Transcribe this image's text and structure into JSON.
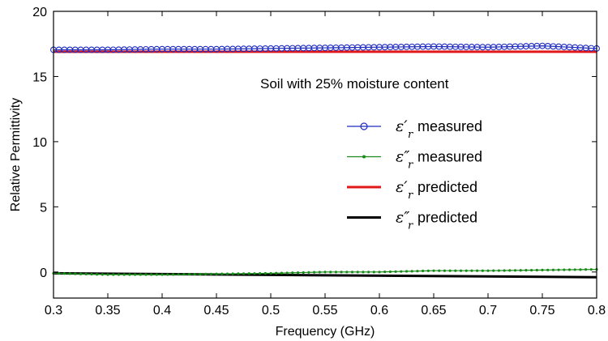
{
  "chart_data": {
    "type": "line",
    "title": "",
    "annotation": "Soil with 25% moisture content",
    "xlabel": "Frequency (GHz)",
    "ylabel": "Relative Permittivity",
    "xlim": [
      0.3,
      0.8
    ],
    "ylim": [
      -2,
      20
    ],
    "xticks": [
      0.3,
      0.35,
      0.4,
      0.45,
      0.5,
      0.55,
      0.6,
      0.65,
      0.7,
      0.75,
      0.8
    ],
    "xtick_labels": [
      "0.3",
      "0.35",
      "0.4",
      "0.45",
      "0.5",
      "0.55",
      "0.6",
      "0.65",
      "0.7",
      "0.75",
      "0.8"
    ],
    "yticks": [
      0,
      5,
      10,
      15,
      20
    ],
    "ytick_labels": [
      "0",
      "5",
      "10",
      "15",
      "20"
    ],
    "grid": false,
    "legend_position": "right",
    "series": [
      {
        "symbol": "ε′",
        "subscript": "r",
        "label": "measured",
        "color": "#1f2bbf",
        "marker": "circle",
        "x": [
          0.3,
          0.35,
          0.4,
          0.45,
          0.5,
          0.55,
          0.6,
          0.65,
          0.7,
          0.75,
          0.8
        ],
        "y": [
          17.05,
          17.05,
          17.1,
          17.1,
          17.15,
          17.2,
          17.25,
          17.3,
          17.25,
          17.35,
          17.15
        ]
      },
      {
        "symbol": "ε″",
        "subscript": "r",
        "label": "measured",
        "color": "#1a8a1a",
        "marker": "dot",
        "x": [
          0.3,
          0.35,
          0.4,
          0.45,
          0.5,
          0.55,
          0.6,
          0.65,
          0.7,
          0.75,
          0.8
        ],
        "y": [
          -0.1,
          -0.2,
          -0.2,
          -0.15,
          -0.1,
          0.0,
          0.0,
          0.1,
          0.1,
          0.15,
          0.2
        ]
      },
      {
        "symbol": "ε′",
        "subscript": "r",
        "label": "predicted",
        "color": "#e01818",
        "marker": "none",
        "x": [
          0.3,
          0.8
        ],
        "y": [
          16.9,
          16.9
        ]
      },
      {
        "symbol": "ε″",
        "subscript": "r",
        "label": "predicted",
        "color": "#000000",
        "marker": "none",
        "x": [
          0.3,
          0.8
        ],
        "y": [
          -0.1,
          -0.4
        ]
      }
    ]
  }
}
